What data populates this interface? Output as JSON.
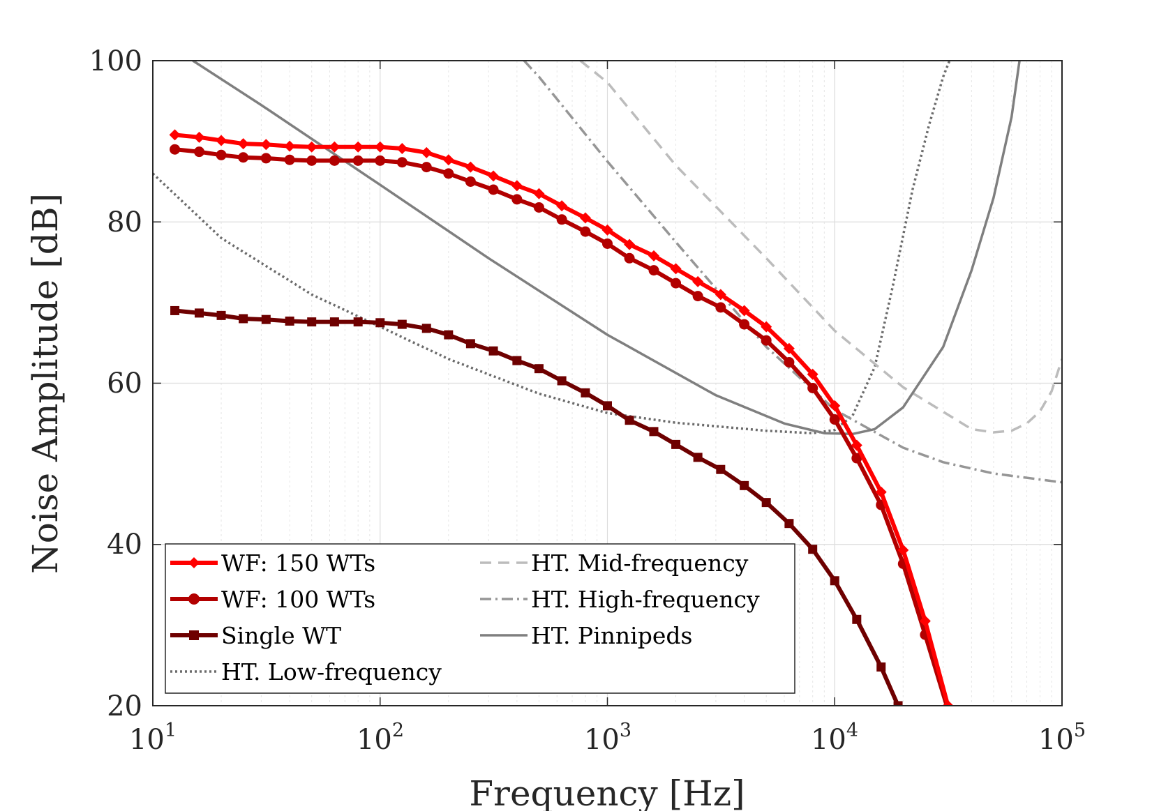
{
  "chart_data": {
    "type": "line",
    "xscale": "log",
    "xlabel": "Frequency [Hz]",
    "ylabel": "Noise Amplitude [dB]",
    "xlim": [
      10,
      100000
    ],
    "ylim": [
      20,
      100
    ],
    "grid": true,
    "x_ticks": [
      {
        "value": 10,
        "base": "10",
        "exp": "1"
      },
      {
        "value": 100,
        "base": "10",
        "exp": "2"
      },
      {
        "value": 1000,
        "base": "10",
        "exp": "3"
      },
      {
        "value": 10000,
        "base": "10",
        "exp": "4"
      },
      {
        "value": 100000,
        "base": "10",
        "exp": "5"
      }
    ],
    "y_ticks": [
      {
        "value": 20,
        "label": "20"
      },
      {
        "value": 40,
        "label": "40"
      },
      {
        "value": 60,
        "label": "60"
      },
      {
        "value": 80,
        "label": "80"
      },
      {
        "value": 100,
        "label": "100"
      }
    ],
    "legend_position": "bottom-left",
    "series": [
      {
        "name": "WF: 150 WTs",
        "color": "#ff0000",
        "style": "solid",
        "marker": "diamond",
        "x": [
          12.5,
          16,
          20,
          25,
          31.5,
          40,
          50,
          63,
          80,
          100,
          125,
          160,
          200,
          250,
          315,
          400,
          500,
          630,
          800,
          1000,
          1250,
          1600,
          2000,
          2500,
          3150,
          4000,
          5000,
          6300,
          8000,
          10000,
          12500,
          16000,
          20000,
          25000,
          31500
        ],
        "y": [
          90.8,
          90.5,
          90.1,
          89.7,
          89.6,
          89.4,
          89.3,
          89.3,
          89.3,
          89.3,
          89.1,
          88.6,
          87.7,
          86.8,
          85.7,
          84.5,
          83.5,
          82.0,
          80.5,
          79.0,
          77.2,
          75.8,
          74.2,
          72.6,
          71.0,
          69.0,
          67.0,
          64.3,
          61.1,
          57.2,
          52.3,
          46.5,
          39.3,
          30.5,
          20
        ]
      },
      {
        "name": "WF: 100 WTs",
        "color": "#b20000",
        "style": "solid",
        "marker": "circle",
        "x": [
          12.5,
          16,
          20,
          25,
          31.5,
          40,
          50,
          63,
          80,
          100,
          125,
          160,
          200,
          250,
          315,
          400,
          500,
          630,
          800,
          1000,
          1250,
          1600,
          2000,
          2500,
          3150,
          4000,
          5000,
          6300,
          8000,
          10000,
          12500,
          16000,
          20000,
          25000,
          31500
        ],
        "y": [
          89.0,
          88.7,
          88.3,
          88.0,
          87.9,
          87.7,
          87.6,
          87.6,
          87.6,
          87.6,
          87.4,
          86.8,
          86.0,
          85.0,
          84.0,
          82.8,
          81.8,
          80.3,
          78.8,
          77.3,
          75.5,
          74.0,
          72.4,
          70.8,
          69.4,
          67.3,
          65.3,
          62.6,
          59.4,
          55.5,
          50.7,
          44.9,
          37.6,
          28.8,
          19.5
        ]
      },
      {
        "name": "Single WT",
        "color": "#6e0000",
        "style": "solid",
        "marker": "square",
        "x": [
          12.5,
          16,
          20,
          25,
          31.5,
          40,
          50,
          63,
          80,
          100,
          125,
          160,
          200,
          250,
          315,
          400,
          500,
          630,
          800,
          1000,
          1250,
          1600,
          2000,
          2500,
          3150,
          4000,
          5000,
          6300,
          8000,
          10000,
          12500,
          16000,
          19000
        ],
        "y": [
          69.0,
          68.7,
          68.4,
          68.0,
          67.9,
          67.7,
          67.6,
          67.6,
          67.6,
          67.5,
          67.3,
          66.8,
          66.0,
          64.9,
          64.0,
          62.8,
          61.8,
          60.3,
          58.8,
          57.2,
          55.4,
          54.0,
          52.4,
          50.8,
          49.3,
          47.3,
          45.2,
          42.6,
          39.4,
          35.5,
          30.7,
          24.8,
          20
        ]
      },
      {
        "name": "HT. Low-frequency",
        "color": "#6b6b6b",
        "style": "dotted",
        "marker": "none",
        "x": [
          10,
          20,
          50,
          100,
          200,
          500,
          1000,
          2000,
          5000,
          8000,
          10000,
          12000,
          15000,
          18000,
          22000,
          26000,
          30000,
          32000
        ],
        "y": [
          86,
          78,
          71,
          67,
          63,
          58.7,
          56.3,
          55.1,
          54.1,
          53.8,
          54.2,
          56,
          62,
          72,
          84,
          92,
          98,
          100
        ]
      },
      {
        "name": "HT. Mid-frequency",
        "color": "#bcbcbc",
        "style": "dashed",
        "marker": "none",
        "x": [
          760,
          1000,
          2000,
          5000,
          10000,
          20000,
          40000,
          50000,
          60000,
          70000,
          80000,
          90000,
          100000
        ],
        "y": [
          100,
          97.3,
          87,
          75.5,
          66.5,
          59.5,
          54.3,
          53.9,
          54.1,
          55,
          56.5,
          59,
          63
        ]
      },
      {
        "name": "HT. High-frequency",
        "color": "#969696",
        "style": "dashdot",
        "marker": "none",
        "x": [
          430,
          500,
          1000,
          2000,
          5000,
          10000,
          20000,
          30000,
          50000,
          100000
        ],
        "y": [
          100,
          98,
          87.5,
          77.5,
          64.5,
          56.7,
          52,
          50.2,
          48.8,
          47.7
        ]
      },
      {
        "name": "HT. Pinnipeds",
        "color": "#7f7f7f",
        "style": "solid",
        "marker": "none",
        "x": [
          15,
          30,
          100,
          300,
          1000,
          3000,
          6000,
          9000,
          12000,
          15000,
          20000,
          30000,
          40000,
          50000,
          60000,
          65000
        ],
        "y": [
          100,
          94.5,
          84.6,
          75.5,
          66,
          58.5,
          55,
          53.8,
          53.7,
          54.3,
          57,
          64.5,
          74,
          83,
          93,
          100
        ]
      }
    ]
  }
}
